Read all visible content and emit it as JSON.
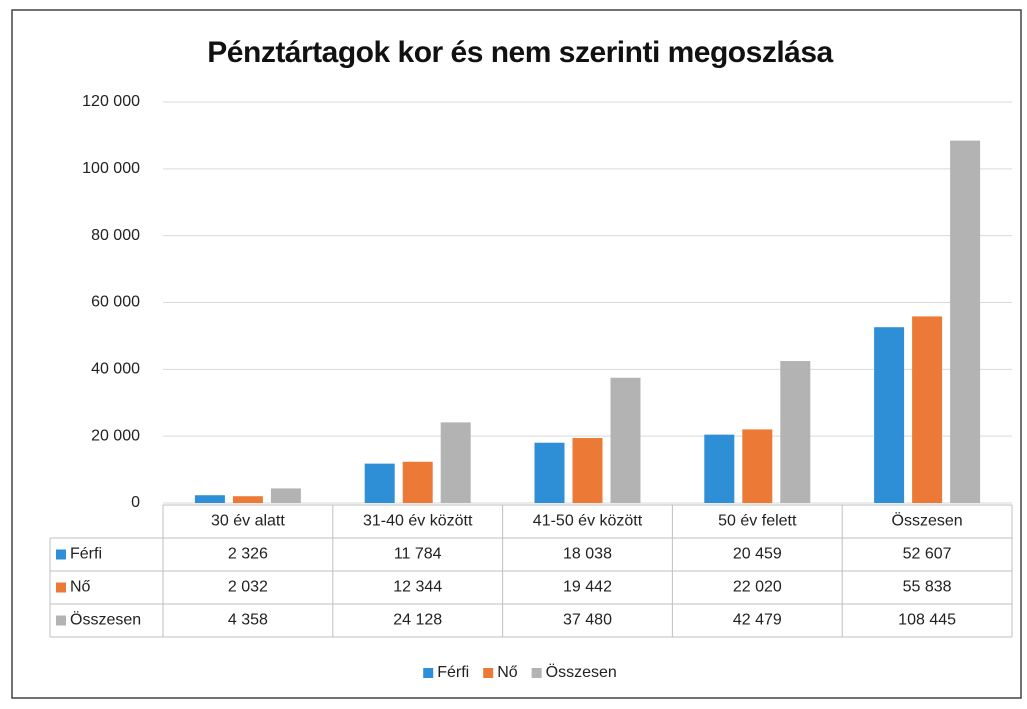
{
  "chart_data": {
    "type": "bar",
    "title": "Pénztártagok kor és nem szerinti megoszlása",
    "categories": [
      "30 év alatt",
      "31-40 év között",
      "41-50 év között",
      "50 év felett",
      "Összesen"
    ],
    "series": [
      {
        "name": "Férfi",
        "color": "#2e8fd6",
        "values": [
          2326,
          11784,
          18038,
          20459,
          52607
        ],
        "value_labels": [
          "2 326",
          "11 784",
          "18 038",
          "20 459",
          "52 607"
        ]
      },
      {
        "name": "Nő",
        "color": "#ec7a36",
        "values": [
          2032,
          12344,
          19442,
          22020,
          55838
        ],
        "value_labels": [
          "2 032",
          "12 344",
          "19 442",
          "22 020",
          "55 838"
        ]
      },
      {
        "name": "Összesen",
        "color": "#b3b3b3",
        "values": [
          4358,
          24128,
          37480,
          42479,
          108445
        ],
        "value_labels": [
          "4 358",
          "24 128",
          "37 480",
          "42 479",
          "108 445"
        ]
      }
    ],
    "ylim": [
      0,
      120000
    ],
    "yticks": [
      0,
      {
        "value": 20000,
        "label": "20 000"
      },
      {
        "value": 40000,
        "label": "40 000"
      },
      {
        "value": 60000,
        "label": "60 000"
      },
      {
        "value": 80000,
        "label": "80 000"
      },
      {
        "value": 100000,
        "label": "100 000"
      },
      {
        "value": 120000,
        "label": "120 000"
      }
    ],
    "grid": true,
    "legend": "bottom"
  }
}
